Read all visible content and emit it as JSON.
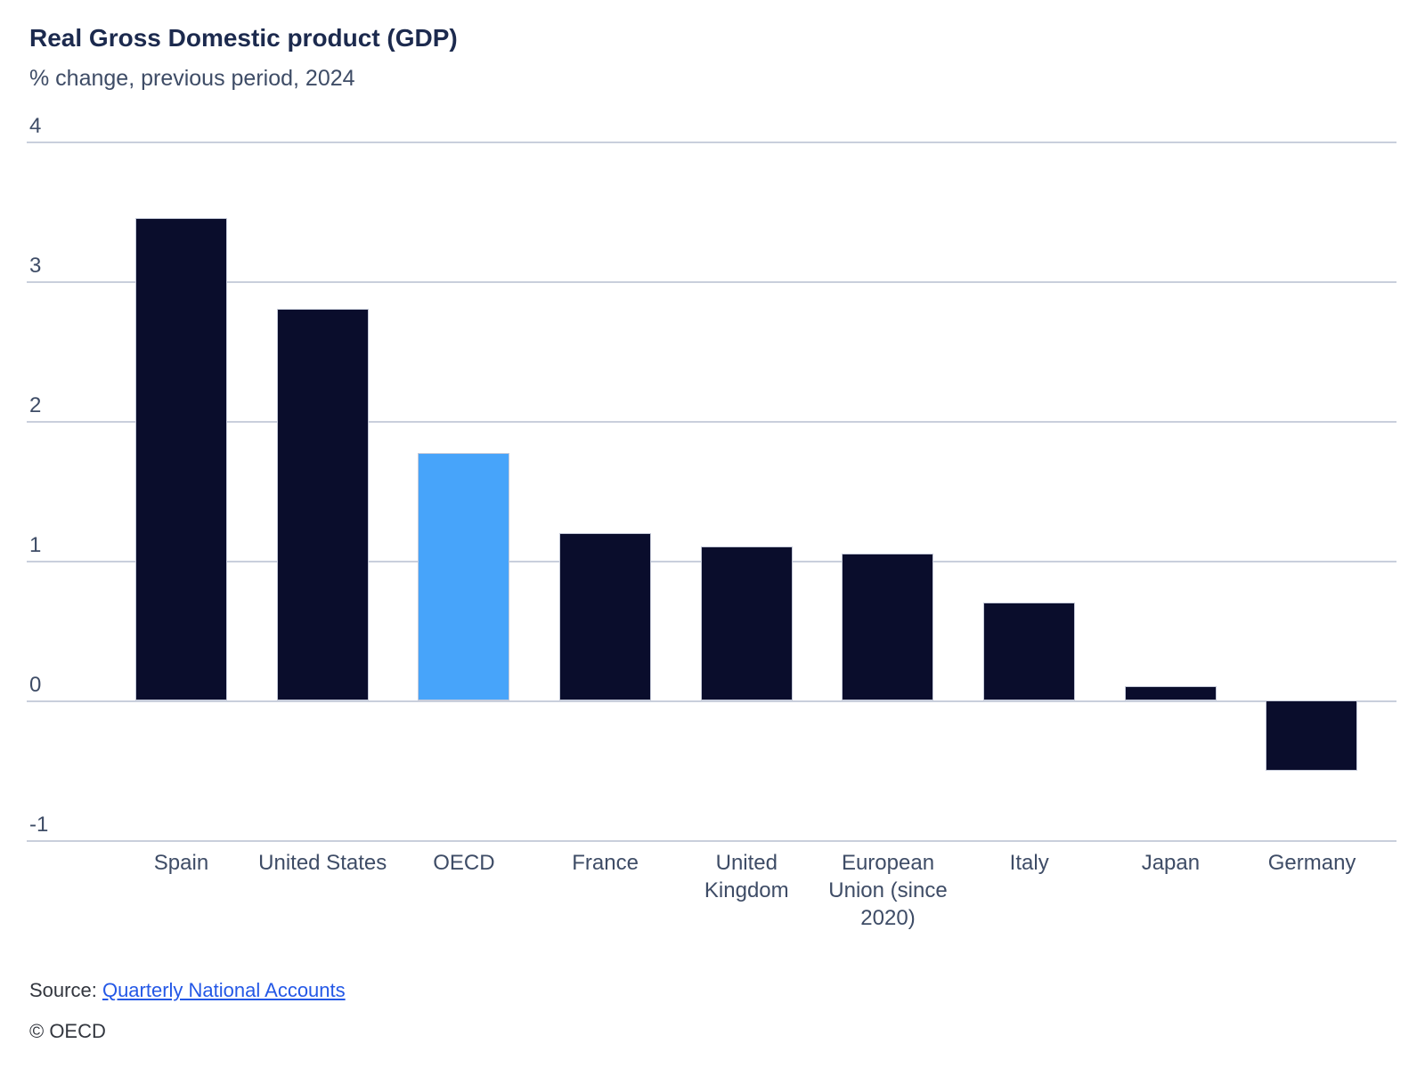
{
  "chart_data": {
    "type": "bar",
    "title": "Real Gross Domestic product (GDP)",
    "subtitle": "% change, previous period, 2024",
    "categories": [
      "Spain",
      "United States",
      "OECD",
      "France",
      "United Kingdom",
      "European Union (since 2020)",
      "Italy",
      "Japan",
      "Germany"
    ],
    "values": [
      3.45,
      2.8,
      1.77,
      1.2,
      1.1,
      1.05,
      0.7,
      0.1,
      -0.5
    ],
    "highlight_category": "OECD",
    "highlight_index": 2,
    "xlabel": "",
    "ylabel": "",
    "ylim": [
      -1,
      4
    ],
    "yticks": [
      4,
      3,
      2,
      1,
      0,
      -1
    ],
    "grid": "horizontal",
    "legend": "none",
    "colors": {
      "bar": "#0a0d2c",
      "highlight_bar": "#47a4fa",
      "gridline": "#c9cfdc",
      "title_text": "#1c2a4e",
      "axis_text": "#3e4c66",
      "bar_border": "#c5cad9"
    }
  },
  "footer": {
    "source_prefix": "Source:",
    "source_link_label": "Quarterly National Accounts",
    "copyright": "© OECD"
  }
}
